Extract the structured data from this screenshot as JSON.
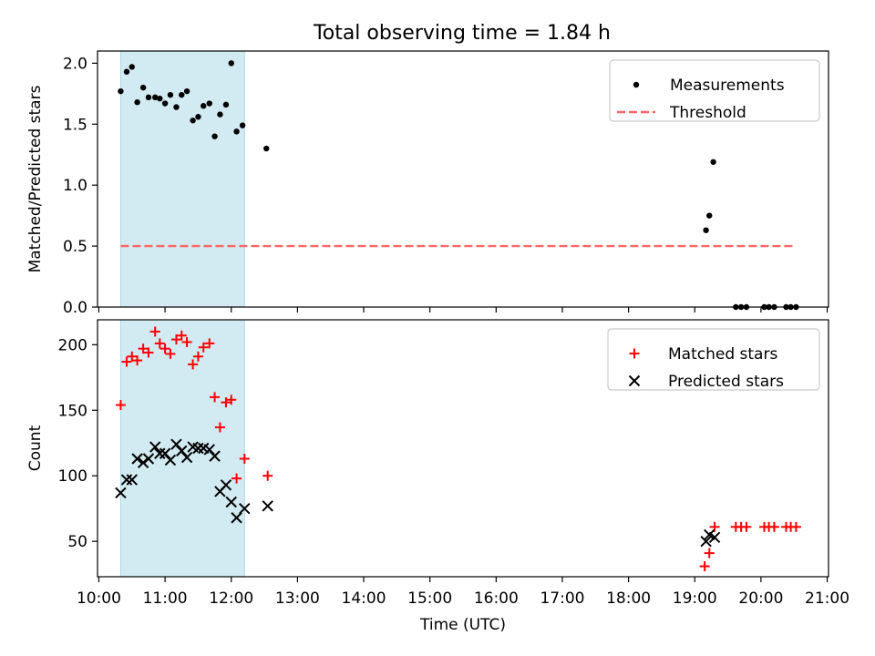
{
  "title": "Total observing time = 1.84 h",
  "colors": {
    "shade": "#add8e6",
    "threshold": "#ff6666",
    "matched": "#ff0000",
    "predicted": "#000000",
    "measure": "#000000"
  },
  "chart_data": [
    {
      "id": "ratio",
      "type": "scatter",
      "ylabel": "Matched/Predicted stars",
      "xlabel": "",
      "xlim": [
        9.98,
        21.02
      ],
      "ylim": [
        0,
        2.1
      ],
      "yticks": [
        0.0,
        0.5,
        1.0,
        1.5,
        2.0
      ],
      "ytick_labels": [
        "0.0",
        "0.5",
        "1.0",
        "1.5",
        "2.0"
      ],
      "shaded_span": [
        10.33,
        12.2
      ],
      "legend": {
        "position": "top-right",
        "entries": [
          "Measurements",
          "Threshold"
        ]
      },
      "threshold": {
        "name": "Threshold",
        "value": 0.5,
        "x_range": [
          10.33,
          20.53
        ]
      },
      "series": [
        {
          "name": "Measurements",
          "points": [
            [
              10.33,
              1.77
            ],
            [
              10.42,
              1.93
            ],
            [
              10.5,
              1.97
            ],
            [
              10.58,
              1.68
            ],
            [
              10.67,
              1.8
            ],
            [
              10.75,
              1.72
            ],
            [
              10.85,
              1.72
            ],
            [
              10.92,
              1.71
            ],
            [
              11.0,
              1.67
            ],
            [
              11.08,
              1.74
            ],
            [
              11.17,
              1.64
            ],
            [
              11.25,
              1.74
            ],
            [
              11.33,
              1.77
            ],
            [
              11.42,
              1.53
            ],
            [
              11.5,
              1.56
            ],
            [
              11.58,
              1.65
            ],
            [
              11.67,
              1.67
            ],
            [
              11.75,
              1.4
            ],
            [
              11.83,
              1.58
            ],
            [
              11.92,
              1.66
            ],
            [
              12.0,
              2.0
            ],
            [
              12.08,
              1.44
            ],
            [
              12.17,
              1.49
            ],
            [
              12.53,
              1.3
            ],
            [
              19.17,
              0.63
            ],
            [
              19.22,
              0.75
            ],
            [
              19.28,
              1.19
            ],
            [
              19.62,
              0.0
            ],
            [
              19.7,
              0.0
            ],
            [
              19.78,
              0.0
            ],
            [
              20.05,
              0.0
            ],
            [
              20.12,
              0.0
            ],
            [
              20.2,
              0.0
            ],
            [
              20.38,
              0.0
            ],
            [
              20.45,
              0.0
            ],
            [
              20.53,
              0.0
            ]
          ]
        }
      ]
    },
    {
      "id": "count",
      "type": "scatter",
      "ylabel": "Count",
      "xlabel": "Time (UTC)",
      "xlim": [
        9.98,
        21.02
      ],
      "ylim": [
        23,
        219
      ],
      "yticks": [
        50,
        100,
        150,
        200
      ],
      "ytick_labels": [
        "50",
        "100",
        "150",
        "200"
      ],
      "xticks": [
        10,
        11,
        12,
        13,
        14,
        15,
        16,
        17,
        18,
        19,
        20,
        21
      ],
      "xtick_labels": [
        "10:00",
        "11:00",
        "12:00",
        "13:00",
        "14:00",
        "15:00",
        "16:00",
        "17:00",
        "18:00",
        "19:00",
        "20:00",
        "21:00"
      ],
      "shaded_span": [
        10.33,
        12.2
      ],
      "legend": {
        "position": "top-right",
        "entries": [
          "Matched stars",
          "Predicted stars"
        ]
      },
      "series": [
        {
          "name": "Matched stars",
          "marker": "plus",
          "points": [
            [
              10.33,
              154
            ],
            [
              10.42,
              187
            ],
            [
              10.5,
              191
            ],
            [
              10.58,
              188
            ],
            [
              10.67,
              197
            ],
            [
              10.75,
              194
            ],
            [
              10.85,
              210
            ],
            [
              10.92,
              201
            ],
            [
              11.0,
              197
            ],
            [
              11.08,
              193
            ],
            [
              11.17,
              204
            ],
            [
              11.25,
              207
            ],
            [
              11.33,
              202
            ],
            [
              11.42,
              185
            ],
            [
              11.5,
              191
            ],
            [
              11.58,
              198
            ],
            [
              11.67,
              201
            ],
            [
              11.75,
              160
            ],
            [
              11.83,
              137
            ],
            [
              11.92,
              156
            ],
            [
              12.0,
              158
            ],
            [
              12.08,
              98
            ],
            [
              12.2,
              113
            ],
            [
              12.55,
              100
            ],
            [
              19.15,
              31
            ],
            [
              19.22,
              41
            ],
            [
              19.3,
              61
            ],
            [
              19.62,
              61
            ],
            [
              19.7,
              61
            ],
            [
              19.78,
              61
            ],
            [
              20.05,
              61
            ],
            [
              20.12,
              61
            ],
            [
              20.2,
              61
            ],
            [
              20.38,
              61
            ],
            [
              20.45,
              61
            ],
            [
              20.53,
              61
            ]
          ]
        },
        {
          "name": "Predicted stars",
          "marker": "x",
          "points": [
            [
              10.33,
              87
            ],
            [
              10.42,
              97
            ],
            [
              10.5,
              97
            ],
            [
              10.58,
              113
            ],
            [
              10.67,
              110
            ],
            [
              10.75,
              113
            ],
            [
              10.85,
              122
            ],
            [
              10.92,
              117
            ],
            [
              11.0,
              117
            ],
            [
              11.08,
              112
            ],
            [
              11.17,
              124
            ],
            [
              11.25,
              119
            ],
            [
              11.33,
              114
            ],
            [
              11.42,
              122
            ],
            [
              11.5,
              121
            ],
            [
              11.58,
              121
            ],
            [
              11.67,
              120
            ],
            [
              11.75,
              115
            ],
            [
              11.83,
              88
            ],
            [
              11.92,
              93
            ],
            [
              12.0,
              80
            ],
            [
              12.08,
              68
            ],
            [
              12.2,
              75
            ],
            [
              12.55,
              77
            ],
            [
              19.17,
              50
            ],
            [
              19.22,
              55
            ],
            [
              19.3,
              53
            ]
          ]
        }
      ]
    }
  ]
}
